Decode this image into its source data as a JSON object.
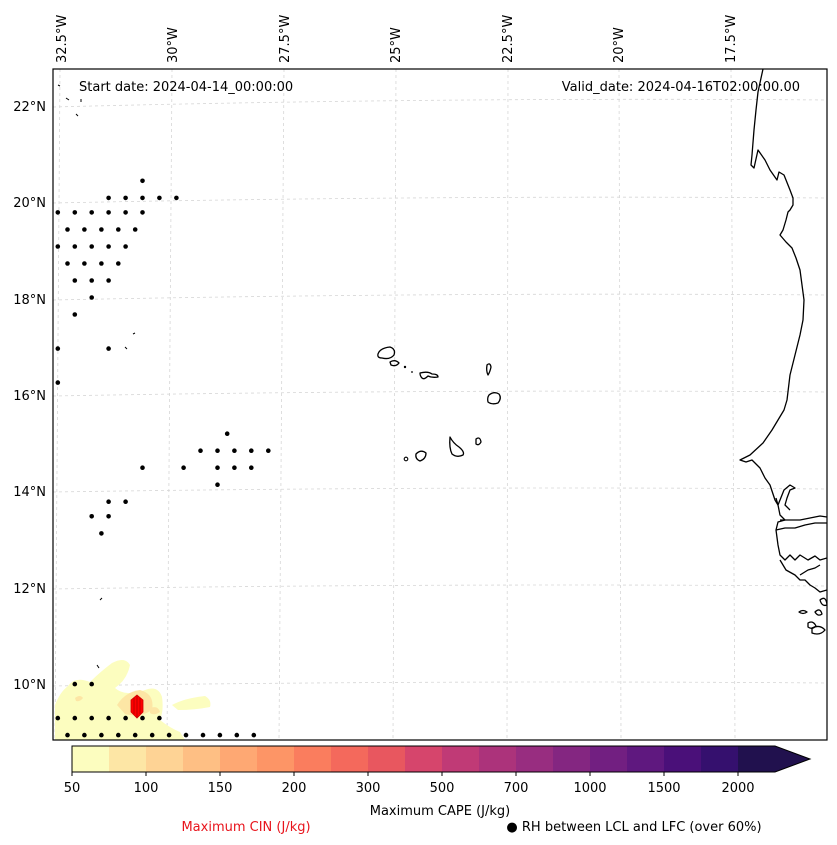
{
  "map": {
    "start_date": "Start date: 2024-04-14_00:00:00",
    "valid_date": "Valid_date: 2024-04-16T02:00:00.00",
    "lon_ticks": [
      "32.5°W",
      "30°W",
      "27.5°W",
      "25°W",
      "22.5°W",
      "20°W",
      "17.5°W"
    ],
    "lat_ticks": [
      "22°N",
      "20°N",
      "18°N",
      "16°N",
      "14°N",
      "12°N",
      "10°N"
    ],
    "lon_range": [
      -32.6,
      -16.6
    ],
    "lat_range": [
      8.9,
      22.7
    ]
  },
  "colorbar": {
    "label": "Maximum CAPE (J/kg)",
    "tick_labels": [
      "50",
      "100",
      "150",
      "200",
      "300",
      "500",
      "700",
      "1000",
      "1500",
      "2000"
    ],
    "levels": [
      50,
      75,
      100,
      125,
      150,
      175,
      200,
      250,
      300,
      400,
      500,
      600,
      700,
      850,
      1000,
      1250,
      1500,
      1750,
      2000,
      2500
    ],
    "colors": [
      "#fcfdbf",
      "#fde6a5",
      "#fed395",
      "#febf84",
      "#fea873",
      "#fd9566",
      "#fa7d5e",
      "#f4695c",
      "#e8575f",
      "#d6456c",
      "#c03a76",
      "#ac337b",
      "#982d80",
      "#842681",
      "#721f81",
      "#5f187f",
      "#4a1079",
      "#35106e",
      "#21114e"
    ],
    "extend": "max"
  },
  "legend": {
    "cin_label": "Maximum CIN (J/kg)",
    "cin_color": "#ff0000",
    "rh_label": "● RH between LCL and LFC (over 60%)"
  },
  "rh_dots": [
    [
      -32.5,
      19.75
    ],
    [
      -32.15,
      19.75
    ],
    [
      -31.8,
      19.75
    ],
    [
      -31.45,
      19.75
    ],
    [
      -31.1,
      19.75
    ],
    [
      -30.75,
      19.75
    ],
    [
      -31.45,
      20.05
    ],
    [
      -31.1,
      20.05
    ],
    [
      -30.75,
      20.05
    ],
    [
      -30.4,
      20.05
    ],
    [
      -30.05,
      20.05
    ],
    [
      -30.75,
      20.4
    ],
    [
      -32.3,
      19.4
    ],
    [
      -31.95,
      19.4
    ],
    [
      -31.6,
      19.4
    ],
    [
      -31.25,
      19.4
    ],
    [
      -30.9,
      19.4
    ],
    [
      -32.5,
      19.05
    ],
    [
      -32.15,
      19.05
    ],
    [
      -31.8,
      19.05
    ],
    [
      -31.45,
      19.05
    ],
    [
      -31.1,
      19.05
    ],
    [
      -32.3,
      18.7
    ],
    [
      -31.95,
      18.7
    ],
    [
      -31.6,
      18.7
    ],
    [
      -31.25,
      18.7
    ],
    [
      -32.15,
      18.35
    ],
    [
      -31.8,
      18.35
    ],
    [
      -31.45,
      18.35
    ],
    [
      -31.8,
      18.0
    ],
    [
      -32.15,
      17.65
    ],
    [
      -32.5,
      16.95
    ],
    [
      -31.45,
      16.95
    ],
    [
      -32.5,
      16.25
    ],
    [
      -29.0,
      15.2
    ],
    [
      -29.55,
      14.85
    ],
    [
      -29.2,
      14.85
    ],
    [
      -28.85,
      14.85
    ],
    [
      -28.5,
      14.85
    ],
    [
      -28.15,
      14.85
    ],
    [
      -30.75,
      14.5
    ],
    [
      -29.9,
      14.5
    ],
    [
      -29.2,
      14.5
    ],
    [
      -28.85,
      14.5
    ],
    [
      -28.5,
      14.5
    ],
    [
      -29.2,
      14.15
    ],
    [
      -31.1,
      13.8
    ],
    [
      -31.45,
      13.8
    ],
    [
      -31.8,
      13.5
    ],
    [
      -31.45,
      13.5
    ],
    [
      -31.6,
      13.15
    ],
    [
      -32.15,
      10.05
    ],
    [
      -31.8,
      10.05
    ],
    [
      -32.5,
      9.35
    ],
    [
      -32.15,
      9.35
    ],
    [
      -31.8,
      9.35
    ],
    [
      -31.45,
      9.35
    ],
    [
      -31.1,
      9.35
    ],
    [
      -30.75,
      9.35
    ],
    [
      -30.4,
      9.35
    ],
    [
      -32.3,
      9.0
    ],
    [
      -31.95,
      9.0
    ],
    [
      -31.6,
      9.0
    ],
    [
      -31.25,
      9.0
    ],
    [
      -30.9,
      9.0
    ],
    [
      -30.55,
      9.0
    ],
    [
      -30.2,
      9.0
    ],
    [
      -29.85,
      9.0
    ],
    [
      -29.5,
      9.0
    ],
    [
      -29.15,
      9.0
    ],
    [
      -28.8,
      9.0
    ],
    [
      -28.45,
      9.0
    ]
  ]
}
